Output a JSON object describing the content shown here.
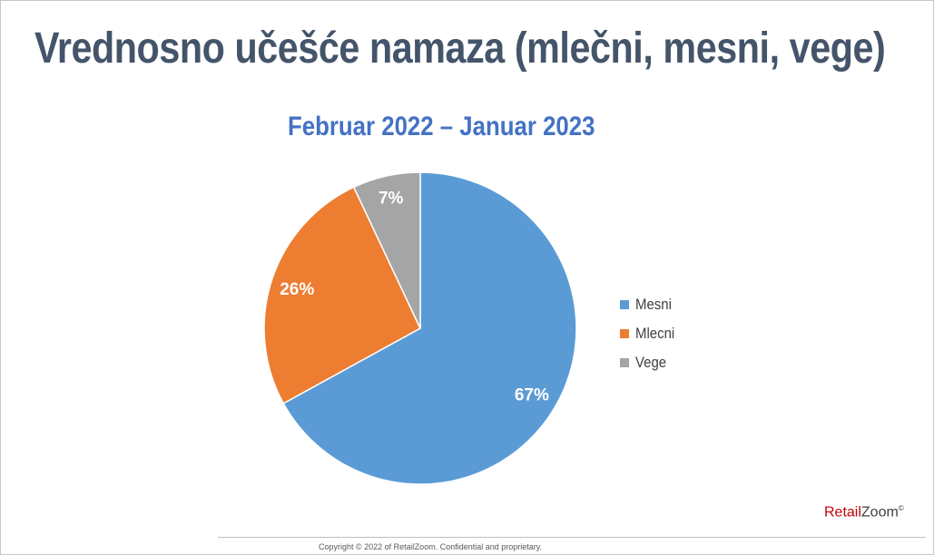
{
  "slide": {
    "title": "Vrednosno učešće namaza (mlečni, mesni, vege)",
    "brand_part1": "Retail",
    "brand_part2": "Zoom",
    "brand_mark": "©",
    "copyright": "Copyright © 2022 of RetailZoom. Confidential and proprietary."
  },
  "colors": {
    "title": "#44546a",
    "subtitle": "#4472c4",
    "brand_red": "#c00000"
  },
  "chart_data": {
    "type": "pie",
    "title": "Februar 2022 – Januar 2023",
    "legend_position": "right",
    "slices": [
      {
        "name": "Mesni",
        "value": 67,
        "label": "67%",
        "color": "#5b9bd5"
      },
      {
        "name": "Mlecni",
        "value": 26,
        "label": "26%",
        "color": "#ed7d31"
      },
      {
        "name": "Vege",
        "value": 7,
        "label": "7%",
        "color": "#a5a5a5"
      }
    ]
  }
}
